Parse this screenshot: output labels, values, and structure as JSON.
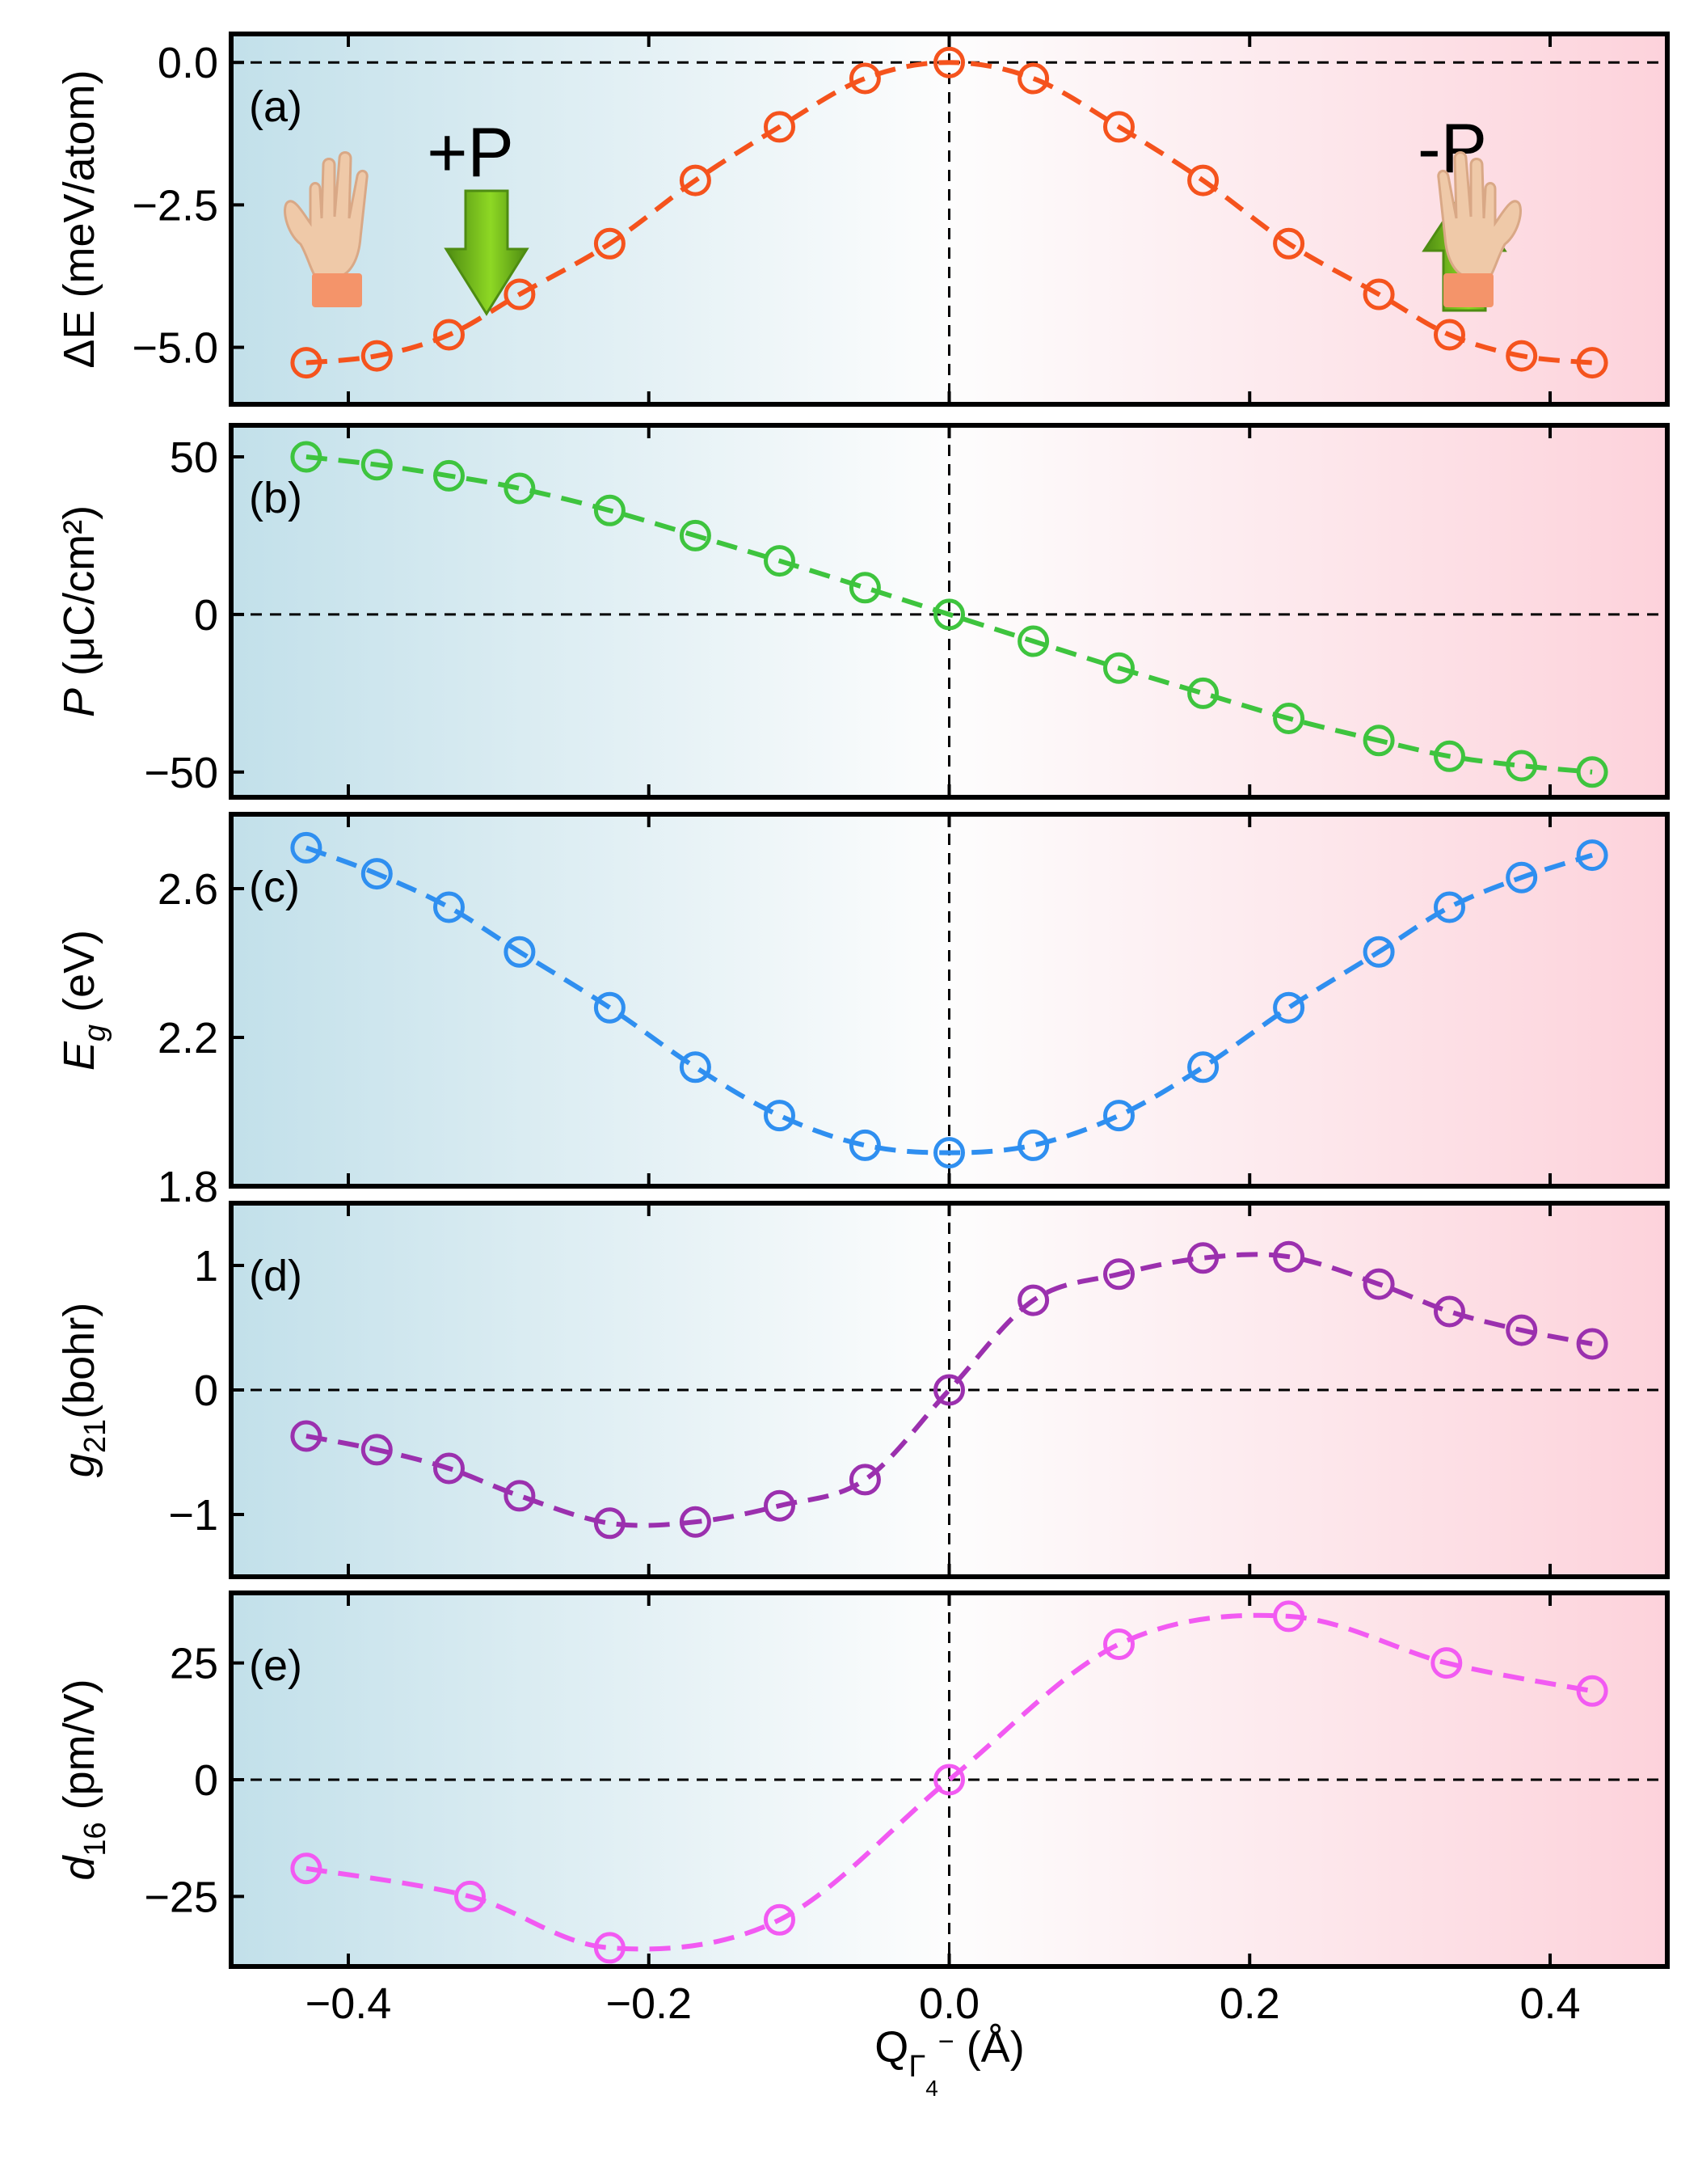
{
  "chart_data": [
    {
      "type": "line",
      "panel_label": "(a)",
      "ylabel": "ΔE (meV/atom)",
      "xlabel": "",
      "ylim": [
        -6.0,
        0.5
      ],
      "yticks": [
        0.0,
        -2.5,
        -5.0
      ],
      "ytick_labels": [
        "0.0",
        "−2.5",
        "−5.0"
      ],
      "zero_line": 0,
      "series": [
        {
          "name": "ΔE",
          "color": "#f5531d",
          "x": [
            -0.428,
            -0.381,
            -0.333,
            -0.286,
            -0.226,
            -0.169,
            -0.113,
            -0.056,
            0.0,
            0.056,
            0.113,
            0.169,
            0.226,
            0.286,
            0.333,
            0.381,
            0.428
          ],
          "y": [
            -5.27,
            -5.15,
            -4.78,
            -4.07,
            -3.18,
            -2.07,
            -1.13,
            -0.28,
            0.0,
            -0.28,
            -1.13,
            -2.07,
            -3.18,
            -4.07,
            -4.78,
            -5.15,
            -5.27
          ]
        }
      ],
      "annotations": [
        {
          "text": "+P",
          "arrow": "down",
          "side": "left"
        },
        {
          "text": "-P",
          "arrow": "up",
          "side": "right"
        }
      ]
    },
    {
      "type": "line",
      "panel_label": "(b)",
      "ylabel": "P (μC/cm²)",
      "ylabel_main": "P",
      "ylabel_rest": " (μC/cm²)",
      "ylim": [
        -58,
        60
      ],
      "yticks": [
        50,
        0,
        -50
      ],
      "ytick_labels": [
        "50",
        "0",
        "−50"
      ],
      "zero_line": 0,
      "series": [
        {
          "name": "P",
          "color": "#3ec43e",
          "x": [
            -0.428,
            -0.381,
            -0.333,
            -0.286,
            -0.226,
            -0.169,
            -0.113,
            -0.056,
            0.0,
            0.056,
            0.113,
            0.169,
            0.226,
            0.286,
            0.333,
            0.381,
            0.428
          ],
          "y": [
            50,
            47.5,
            44,
            40,
            33,
            25,
            17,
            8.5,
            0,
            -8.5,
            -17,
            -25,
            -33,
            -40,
            -45,
            -48,
            -50
          ]
        }
      ]
    },
    {
      "type": "line",
      "panel_label": "(c)",
      "ylabel": "Eg (eV)",
      "ylabel_main": "E",
      "ylabel_sub": "g",
      "ylabel_rest": " (eV)",
      "ylim": [
        1.8,
        2.8
      ],
      "yticks": [
        2.6,
        2.2,
        1.8
      ],
      "ytick_labels": [
        "2.6",
        "2.2",
        "1.8"
      ],
      "zero_line": null,
      "series": [
        {
          "name": "Eg",
          "color": "#2f8ff0",
          "x": [
            -0.428,
            -0.381,
            -0.333,
            -0.286,
            -0.226,
            -0.169,
            -0.113,
            -0.056,
            0.0,
            0.056,
            0.113,
            0.169,
            0.226,
            0.286,
            0.333,
            0.381,
            0.428
          ],
          "y": [
            2.71,
            2.64,
            2.55,
            2.43,
            2.28,
            2.12,
            1.99,
            1.91,
            1.89,
            1.91,
            1.99,
            2.12,
            2.28,
            2.43,
            2.55,
            2.63,
            2.69
          ]
        }
      ]
    },
    {
      "type": "line",
      "panel_label": "(d)",
      "ylabel": "g21(bohr)",
      "ylabel_main": "g",
      "ylabel_sub": "21",
      "ylabel_rest": "(bohr)",
      "ylim": [
        -1.5,
        1.5
      ],
      "yticks": [
        1,
        0,
        -1
      ],
      "ytick_labels": [
        "1",
        "0",
        "−1"
      ],
      "zero_line": 0,
      "series": [
        {
          "name": "g21",
          "color": "#9b30ae",
          "x": [
            -0.428,
            -0.381,
            -0.333,
            -0.286,
            -0.226,
            -0.169,
            -0.113,
            -0.056,
            0.0,
            0.056,
            0.113,
            0.169,
            0.226,
            0.286,
            0.333,
            0.381,
            0.428
          ],
          "y": [
            -0.37,
            -0.48,
            -0.63,
            -0.85,
            -1.07,
            -1.06,
            -0.93,
            -0.72,
            0.0,
            0.72,
            0.93,
            1.06,
            1.07,
            0.85,
            0.63,
            0.48,
            0.37
          ]
        }
      ]
    },
    {
      "type": "line",
      "panel_label": "(e)",
      "ylabel": "d16 (pm/V)",
      "ylabel_main": "d",
      "ylabel_sub": "16",
      "ylabel_rest": " (pm/V)",
      "xlabel": "QΓ4⁻ (Å)",
      "ylim": [
        -40,
        40
      ],
      "yticks": [
        25,
        0,
        -25
      ],
      "ytick_labels": [
        "25",
        "0",
        "−25"
      ],
      "xlim": [
        -0.478,
        0.478
      ],
      "xticks": [
        -0.4,
        -0.2,
        0.0,
        0.2,
        0.4
      ],
      "xtick_labels": [
        "−0.4",
        "−0.2",
        "0.0",
        "0.2",
        "0.4"
      ],
      "zero_line": 0,
      "series": [
        {
          "name": "d16",
          "color": "#f25af2",
          "x": [
            -0.428,
            -0.319,
            -0.226,
            -0.113,
            0.0,
            0.113,
            0.226,
            0.331,
            0.428
          ],
          "y": [
            -19,
            -25,
            -36,
            -30,
            0,
            29,
            35,
            25,
            19
          ]
        }
      ]
    }
  ],
  "figure": {
    "xlabel_main": "Q",
    "xlabel_sub": "Γ",
    "xlabel_subsub": "4",
    "xlabel_sup": "−",
    "xlabel_rest": " (Å)",
    "xlim": [
      -0.478,
      0.478
    ],
    "background_colors": {
      "left": "#c2e0ea",
      "middle": "#fdfdfd",
      "right": "#fdd2db"
    },
    "arrow_colors": {
      "dark": "#4e8c12",
      "light": "#8ed824"
    },
    "hand_colors": {
      "skin": "#efc9a8",
      "shade": "#d9a886",
      "cuff": "#f4946a"
    }
  }
}
